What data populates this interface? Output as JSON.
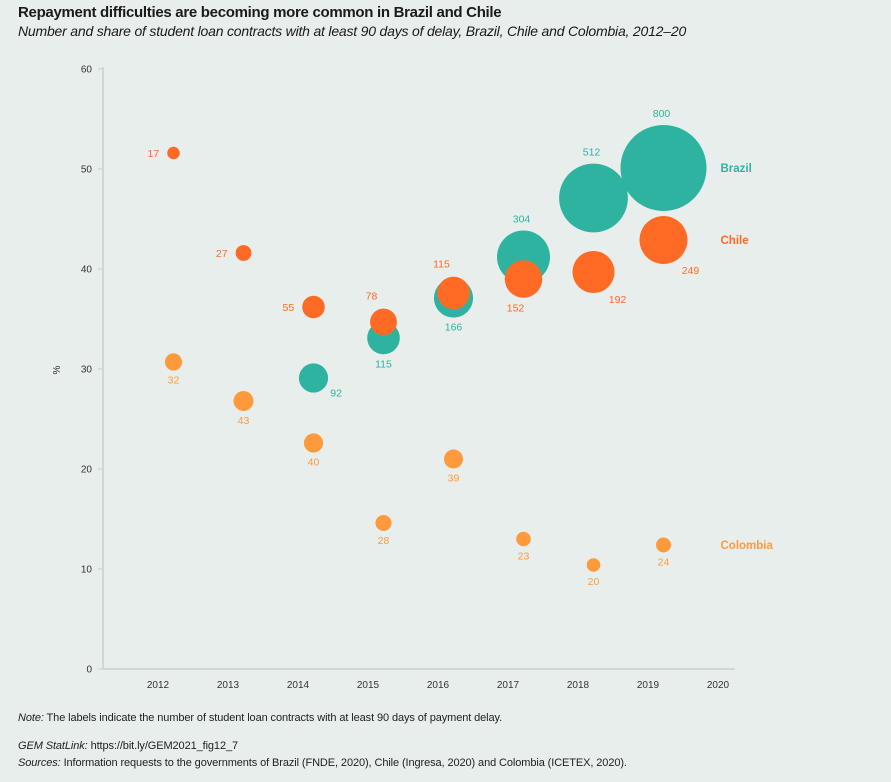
{
  "header": {
    "title": "Repayment difficulties are becoming more common in Brazil and Chile",
    "subtitle": "Number and share of student loan contracts with at least 90 days of delay, Brazil, Chile and Colombia, 2012–20"
  },
  "chart_data": {
    "type": "scatter",
    "subtype": "bubble",
    "title": "Repayment difficulties are becoming more common in Brazil and Chile",
    "xlabel": "",
    "ylabel": "%",
    "x_ticks": [
      "2012",
      "2013",
      "2014",
      "2015",
      "2016",
      "2017",
      "2018",
      "2019",
      "2020"
    ],
    "y_ticks": [
      0,
      10,
      20,
      30,
      40,
      50,
      60
    ],
    "ylim": [
      0,
      60
    ],
    "grid": false,
    "legend": "direct labels at right of series",
    "series": [
      {
        "name": "Brazil",
        "color": "#2db3a0",
        "points": [
          {
            "year": 2014,
            "share": 29.1,
            "count": 92
          },
          {
            "year": 2015,
            "share": 33.1,
            "count": 115
          },
          {
            "year": 2016,
            "share": 37.1,
            "count": 166
          },
          {
            "year": 2017,
            "share": 41.2,
            "count": 304
          },
          {
            "year": 2018,
            "share": 47.1,
            "count": 512
          },
          {
            "year": 2019,
            "share": 50.1,
            "count": 800
          }
        ]
      },
      {
        "name": "Chile",
        "color": "#ff6a24",
        "points": [
          {
            "year": 2012,
            "share": 51.6,
            "count": 17
          },
          {
            "year": 2013,
            "share": 41.6,
            "count": 27
          },
          {
            "year": 2014,
            "share": 36.2,
            "count": 55
          },
          {
            "year": 2015,
            "share": 34.7,
            "count": 78
          },
          {
            "year": 2016,
            "share": 37.6,
            "count": 115
          },
          {
            "year": 2017,
            "share": 39.0,
            "count": 152
          },
          {
            "year": 2018,
            "share": 39.7,
            "count": 192
          },
          {
            "year": 2019,
            "share": 42.9,
            "count": 249
          }
        ]
      },
      {
        "name": "Colombia",
        "color": "#ff9a3c",
        "points": [
          {
            "year": 2012,
            "share": 30.7,
            "count": 32
          },
          {
            "year": 2013,
            "share": 26.8,
            "count": 43
          },
          {
            "year": 2014,
            "share": 22.6,
            "count": 40
          },
          {
            "year": 2015,
            "share": 14.6,
            "count": 28
          },
          {
            "year": 2016,
            "share": 21.0,
            "count": 39
          },
          {
            "year": 2017,
            "share": 13.0,
            "count": 23
          },
          {
            "year": 2018,
            "share": 10.4,
            "count": 20
          },
          {
            "year": 2019,
            "share": 12.4,
            "count": 24
          }
        ]
      }
    ]
  },
  "footer": {
    "note_label": "Note:",
    "note_text": " The labels indicate the number of student loan contracts with at least 90 days of payment delay.",
    "statlink_label": "GEM StatLink:",
    "statlink_text": " https://bit.ly/GEM2021_fig12_7",
    "sources_label": "Sources:",
    "sources_text": " Information requests to the governments of Brazil (FNDE, 2020), Chile (Ingresa, 2020) and Colombia (ICETEX, 2020)."
  }
}
